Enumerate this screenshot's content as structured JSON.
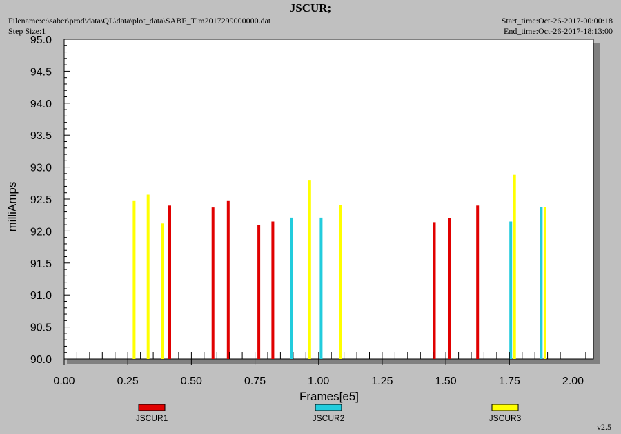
{
  "header": {
    "title": "JSCUR;",
    "filename": "Filename:c:\\saber\\prod\\data\\QL\\data\\plot_data\\SABE_Tlm2017299000000.dat",
    "step_size": "Step Size:1",
    "start_time": "Start_time:Oct-26-2017-00:00:18",
    "end_time": "End_time:Oct-26-2017-18:13:00"
  },
  "version": "v2.5",
  "colors": {
    "JSCUR1": "#e00000",
    "JSCUR2": "#22ccdd",
    "JSCUR3": "#ffff00"
  },
  "chart_data": {
    "type": "bar",
    "title": "JSCUR;",
    "xlabel": "Frames[e5]",
    "ylabel": "milliAmps",
    "xlim": [
      0.0,
      2.08
    ],
    "ylim": [
      90.0,
      95.0
    ],
    "x_ticks": [
      "0.00",
      "0.25",
      "0.50",
      "0.75",
      "1.00",
      "1.25",
      "1.50",
      "1.75",
      "2.00"
    ],
    "y_ticks": [
      "90.0",
      "90.5",
      "91.0",
      "91.5",
      "92.0",
      "92.5",
      "93.0",
      "93.5",
      "94.0",
      "94.5",
      "95.0"
    ],
    "grid": false,
    "legend_position": "bottom",
    "series": [
      {
        "name": "JSCUR1",
        "x": [
          0.415,
          0.585,
          0.645,
          0.765,
          0.82,
          1.455,
          1.515,
          1.625
        ],
        "values": [
          92.4,
          92.37,
          92.47,
          92.1,
          92.15,
          92.14,
          92.2,
          92.4
        ]
      },
      {
        "name": "JSCUR2",
        "x": [
          0.895,
          1.01,
          1.755,
          1.875
        ],
        "values": [
          92.21,
          92.21,
          92.15,
          92.38
        ]
      },
      {
        "name": "JSCUR3",
        "x": [
          0.275,
          0.33,
          0.385,
          0.965,
          1.085,
          1.77,
          1.89
        ],
        "values": [
          92.47,
          92.57,
          92.12,
          92.79,
          92.41,
          92.88,
          92.38
        ]
      }
    ]
  }
}
